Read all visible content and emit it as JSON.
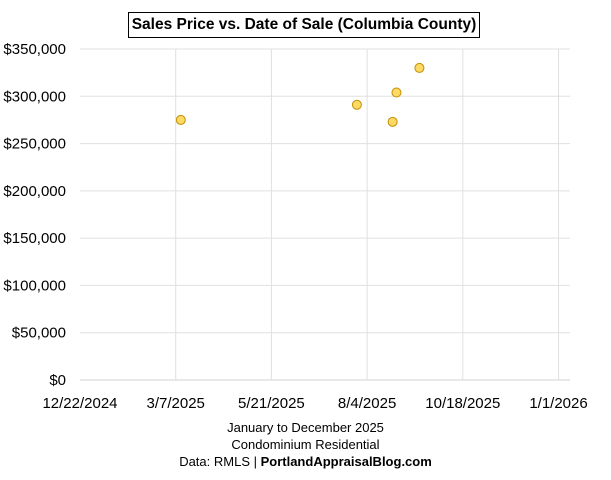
{
  "chart_data": {
    "type": "scatter",
    "title": "Sales Price vs. Date of Sale (Columbia County)",
    "xlabel_lines": [
      "January to December 2025",
      "Condominium Residential"
    ],
    "source_prefix": "Data: RMLS | ",
    "source_brand": "PortlandAppraisalBlog.com",
    "x_ticks": [
      "12/22/2024",
      "3/7/2025",
      "5/21/2025",
      "8/4/2025",
      "10/18/2025",
      "1/1/2026"
    ],
    "x_range": [
      "2024-12-22",
      "2026-01-10"
    ],
    "x_tick_step_days": 75,
    "y_ticks": [
      "$0",
      "$50,000",
      "$100,000",
      "$150,000",
      "$200,000",
      "$250,000",
      "$300,000",
      "$350,000"
    ],
    "ylim": [
      0,
      350000
    ],
    "y_step": 50000,
    "grid": true,
    "marker_fill": "#FFD966",
    "marker_stroke": "#BF9000",
    "points": [
      {
        "date": "2025-03-11",
        "price": 275000
      },
      {
        "date": "2025-07-27",
        "price": 291000
      },
      {
        "date": "2025-08-24",
        "price": 273000
      },
      {
        "date": "2025-08-27",
        "price": 304000
      },
      {
        "date": "2025-09-14",
        "price": 330000
      }
    ]
  }
}
